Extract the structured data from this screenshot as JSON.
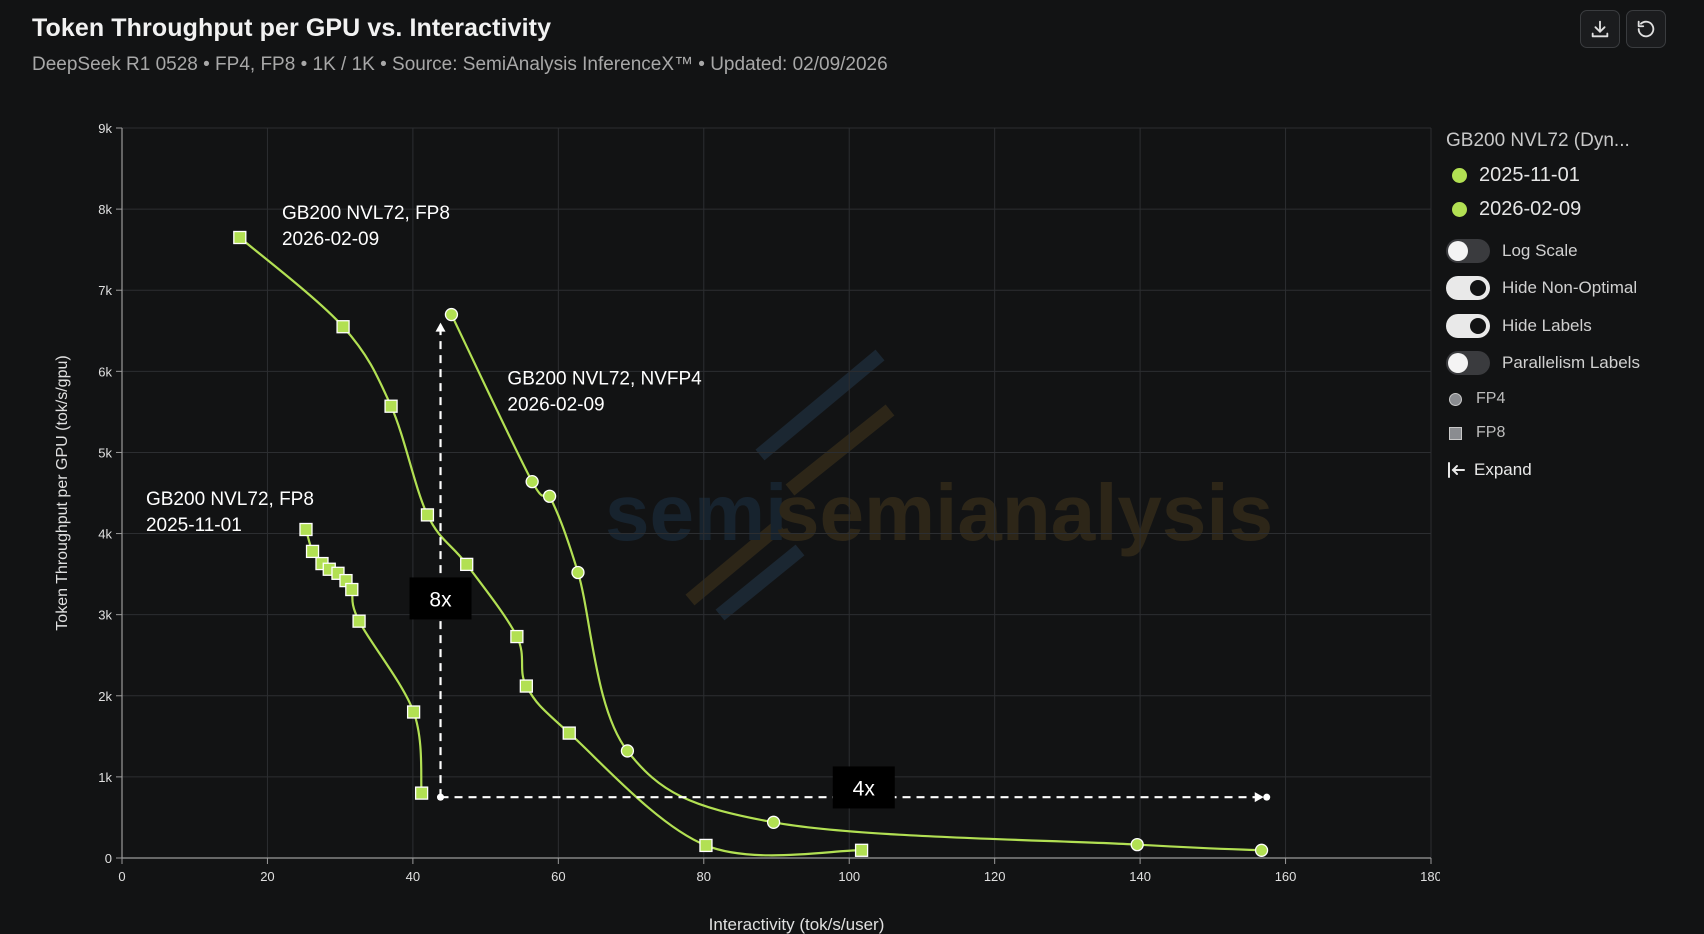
{
  "header": {
    "title": "Token Throughput per GPU vs. Interactivity",
    "subtitle": "DeepSeek R1 0528 • FP4, FP8 • 1K / 1K • Source: SemiAnalysis InferenceX™ • Updated: 02/09/2026"
  },
  "toolbar": {
    "download_icon": "download-icon",
    "reset_icon": "reset-icon"
  },
  "watermark": "semianalysis",
  "legend": {
    "title": "GB200 NVL72 (Dyn...",
    "items": [
      {
        "label": "2025-11-01",
        "color": "#b2e053"
      },
      {
        "label": "2026-02-09",
        "color": "#b2e053"
      }
    ],
    "toggles": [
      {
        "label": "Log Scale",
        "state": "off"
      },
      {
        "label": "Hide Non-Optimal",
        "state": "on"
      },
      {
        "label": "Hide Labels",
        "state": "on"
      },
      {
        "label": "Parallelism Labels",
        "state": "off"
      }
    ],
    "shapes": [
      {
        "label": "FP4",
        "shape": "circle"
      },
      {
        "label": "FP8",
        "shape": "square"
      }
    ],
    "expand_label": "Expand"
  },
  "chart_data": {
    "type": "scatter",
    "xlabel": "Interactivity (tok/s/user)",
    "ylabel": "Token Throughput per GPU (tok/s/gpu)",
    "xlim": [
      0,
      180
    ],
    "ylim": [
      0,
      9000
    ],
    "xticks": [
      0,
      20,
      40,
      60,
      80,
      100,
      120,
      140,
      160,
      180
    ],
    "yticks": [
      0,
      1000,
      2000,
      3000,
      4000,
      5000,
      6000,
      7000,
      8000,
      9000
    ],
    "ytick_labels": [
      "0",
      "1k",
      "2k",
      "3k",
      "4k",
      "5k",
      "6k",
      "7k",
      "8k",
      "9k"
    ],
    "grid": true,
    "line_color": "#b2e053",
    "series": [
      {
        "name": "2025-11-01",
        "marker": "square",
        "points": [
          [
            25.3,
            4050
          ],
          [
            26.2,
            3780
          ],
          [
            27.5,
            3630
          ],
          [
            28.5,
            3560
          ],
          [
            29.7,
            3510
          ],
          [
            30.8,
            3420
          ],
          [
            31.6,
            3310
          ],
          [
            32.6,
            2920
          ],
          [
            40.1,
            1800
          ],
          [
            41.2,
            800
          ]
        ]
      },
      {
        "name": "2026-02-09",
        "marker": "square",
        "points": [
          [
            16.2,
            7650
          ],
          [
            30.4,
            6550
          ],
          [
            37.0,
            5570
          ],
          [
            42.0,
            4230
          ],
          [
            47.4,
            3620
          ],
          [
            54.3,
            2730
          ],
          [
            55.6,
            2120
          ],
          [
            61.5,
            1540
          ],
          [
            80.3,
            155
          ],
          [
            101.7,
            95
          ]
        ]
      },
      {
        "name": "2026-02-09",
        "marker": "circle",
        "points": [
          [
            45.3,
            6700
          ],
          [
            56.4,
            4640
          ],
          [
            58.8,
            4460
          ],
          [
            62.7,
            3520
          ],
          [
            69.5,
            1320
          ],
          [
            89.6,
            440
          ],
          [
            139.6,
            165
          ],
          [
            156.7,
            95
          ]
        ]
      }
    ],
    "annotations": [
      {
        "text": "GB200 NVL72, FP8",
        "text2": "2026-02-09",
        "x": 22,
        "y": 7880
      },
      {
        "text": "GB200 NVL72, NVFP4",
        "text2": "2026-02-09",
        "x": 53,
        "y": 5840
      },
      {
        "text": "GB200 NVL72, FP8",
        "text2": "2025-11-01",
        "x": 3.3,
        "y": 4350
      }
    ],
    "arrows": [
      {
        "label": "8x",
        "from": [
          43.8,
          750
        ],
        "to": [
          43.8,
          6600
        ],
        "label_at": [
          43.8,
          3200
        ]
      },
      {
        "label": "4x",
        "from": [
          43.8,
          750
        ],
        "to": [
          157,
          750
        ],
        "label_at": [
          102,
          870
        ]
      }
    ]
  }
}
